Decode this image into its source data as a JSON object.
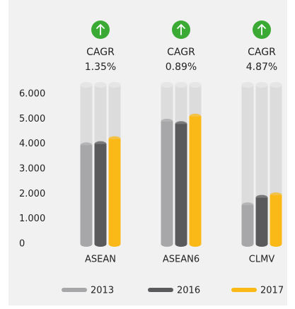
{
  "chart_data": {
    "type": "bar",
    "categories": [
      "ASEAN",
      "ASEAN6",
      "CLMV"
    ],
    "annotation_title": "CAGR",
    "annotations": [
      {
        "value": 1.35,
        "label": "1.35%"
      },
      {
        "value": 0.89,
        "label": "0.89%"
      },
      {
        "value": 4.87,
        "label": "4.87%"
      }
    ],
    "series": [
      {
        "name": "2013",
        "color": "#a7a7a9",
        "values": [
          3950,
          4900,
          1550
        ]
      },
      {
        "name": "2016",
        "color": "#5a5a5c",
        "values": [
          4000,
          4800,
          1850
        ]
      },
      {
        "name": "2017",
        "color": "#fbb917",
        "values": [
          4200,
          5100,
          1950
        ]
      }
    ],
    "ylim": [
      0,
      6000
    ],
    "yticks": [
      0,
      {
        "value": 1000,
        "label": "1.000"
      },
      {
        "value": 2000,
        "label": "2.000"
      },
      {
        "value": 3000,
        "label": "3.000"
      },
      {
        "value": 4000,
        "label": "4.000"
      },
      {
        "value": 5000,
        "label": "5.000"
      },
      {
        "value": 6000,
        "label": "6.000"
      }
    ],
    "grid": false,
    "legend": "bottom"
  }
}
